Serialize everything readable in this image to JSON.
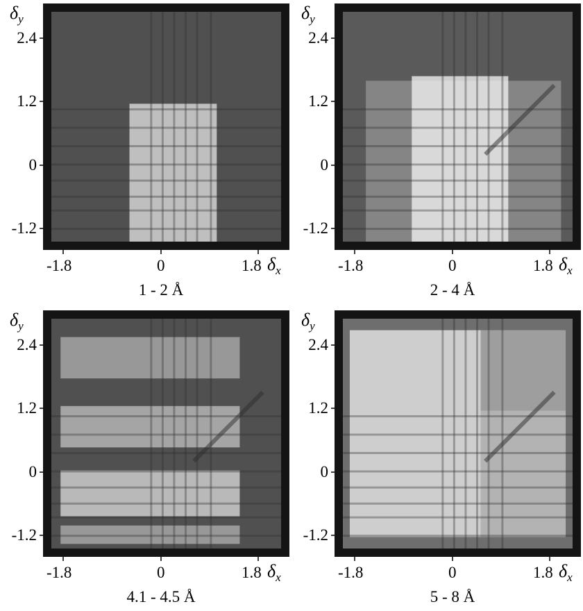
{
  "axes": {
    "x_symbol": "δ",
    "x_sub": "x",
    "y_symbol": "δ",
    "y_sub": "y",
    "x_ticks": [
      "-1.8",
      "0",
      "1.8"
    ],
    "y_ticks": [
      "2.4",
      "1.2",
      "0",
      "-1.2"
    ]
  },
  "panels": [
    {
      "caption": "1 - 2 Å",
      "background": "#505050"
    },
    {
      "caption": "2 - 4 Å",
      "background": "#5a5a5a"
    },
    {
      "caption": "4.1 - 4.5 Å",
      "background": "#505050"
    },
    {
      "caption": "5 - 8 Å",
      "background": "#6e6e6e"
    }
  ],
  "colors": {
    "frame": "#141414",
    "highlight": "#f4f4f4",
    "stripe_dark": "#2e2e2e"
  }
}
